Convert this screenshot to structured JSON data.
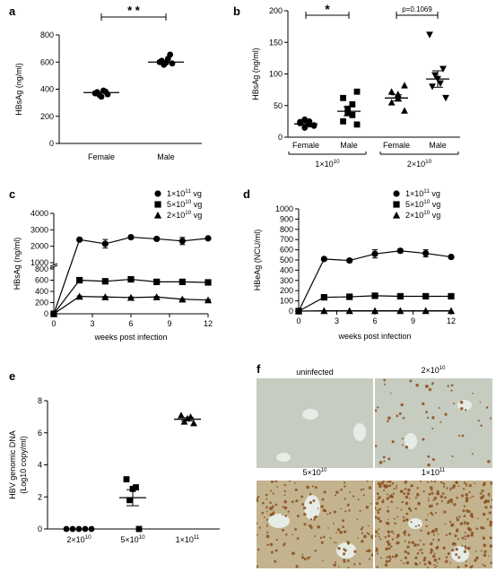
{
  "colors": {
    "ink": "#000000",
    "tissue_bg": "#c9cdc2",
    "stain": "#8a4f1f"
  },
  "chart_data": [
    {
      "panel": "a",
      "type": "scatter",
      "categories": [
        "Female",
        "Male"
      ],
      "ylabel": "HBsAg (ng/ml)",
      "ylim": [
        0,
        800
      ],
      "yticks": [
        "0",
        "200",
        "400",
        "600",
        "800"
      ],
      "points": [
        [
          362,
          378,
          390,
          345,
          358,
          382,
          370
        ],
        [
          590,
          610,
          625,
          595,
          580,
          655,
          600
        ]
      ],
      "means": [
        375,
        600
      ],
      "significance": [
        {
          "from": 0,
          "to": 1,
          "label": "* *"
        }
      ]
    },
    {
      "panel": "b",
      "type": "scatter",
      "categories": [
        "Female",
        "Male",
        "Female",
        "Male"
      ],
      "markers": [
        "circle",
        "square",
        "triangle",
        "triangle-down"
      ],
      "groups": [
        {
          "label_base": "1×10",
          "label_exp": "10"
        },
        {
          "label_base": "2×10",
          "label_exp": "10"
        }
      ],
      "ylabel": "HBsAg (ng/ml)",
      "ylim": [
        0,
        200
      ],
      "yticks": [
        "0",
        "50",
        "100",
        "150",
        "200"
      ],
      "points": [
        [
          18,
          22,
          25,
          28,
          15,
          20,
          24,
          19
        ],
        [
          20,
          25,
          35,
          38,
          45,
          52,
          62,
          72
        ],
        [
          42,
          55,
          62,
          68,
          72,
          82
        ],
        [
          62,
          80,
          85,
          92,
          98,
          108,
          162
        ]
      ],
      "means": [
        21,
        41,
        62,
        92
      ],
      "sem": [
        2,
        7,
        5,
        13
      ],
      "significance": [
        {
          "from": 0,
          "to": 1,
          "label": "*"
        },
        {
          "from": 2,
          "to": 3,
          "label": "p=0.1069"
        }
      ]
    },
    {
      "panel": "c",
      "type": "line",
      "xlabel": "weeks post infection",
      "ylabel": "HBsAg (ng/ml)",
      "x": [
        0,
        2,
        4,
        6,
        8,
        10,
        12
      ],
      "xticks": [
        "0",
        "3",
        "6",
        "9",
        "12"
      ],
      "yticks_lower": [
        "0",
        "200",
        "400",
        "600",
        "800"
      ],
      "yticks_upper": [
        "1000",
        "2000",
        "3000",
        "4000"
      ],
      "series": [
        {
          "marker": "circle",
          "label_base": "1×10",
          "label_exp": "11",
          "label_unit": " vg",
          "values": [
            0,
            2400,
            2150,
            2550,
            2450,
            2320,
            2480
          ],
          "sem": [
            0,
            60,
            260,
            70,
            60,
            220,
            80
          ]
        },
        {
          "marker": "square",
          "label_base": "5×10",
          "label_exp": "10",
          "label_unit": " vg",
          "values": [
            0,
            600,
            580,
            615,
            570,
            570,
            560
          ],
          "sem": [
            0,
            15,
            15,
            20,
            15,
            15,
            15
          ]
        },
        {
          "marker": "triangle",
          "label_base": "2×10",
          "label_exp": "10",
          "label_unit": " vg",
          "values": [
            0,
            310,
            300,
            290,
            300,
            260,
            245
          ],
          "sem": [
            0,
            10,
            10,
            10,
            10,
            10,
            10
          ]
        }
      ]
    },
    {
      "panel": "d",
      "type": "line",
      "xlabel": "weeks post infection",
      "ylabel": "HBeAg (NCU/ml)",
      "x": [
        0,
        2,
        4,
        6,
        8,
        10,
        12
      ],
      "xticks": [
        "0",
        "3",
        "6",
        "9",
        "12"
      ],
      "ylim": [
        0,
        1000
      ],
      "yticks": [
        "0",
        "100",
        "200",
        "300",
        "400",
        "500",
        "600",
        "700",
        "800",
        "900",
        "1000"
      ],
      "series": [
        {
          "marker": "circle",
          "label_base": "1×10",
          "label_exp": "11",
          "label_unit": " vg",
          "values": [
            0,
            510,
            495,
            560,
            590,
            565,
            530
          ],
          "sem": [
            0,
            15,
            15,
            40,
            20,
            35,
            15
          ]
        },
        {
          "marker": "square",
          "label_base": "5×10",
          "label_exp": "10",
          "label_unit": " vg",
          "values": [
            0,
            135,
            140,
            150,
            145,
            145,
            145
          ],
          "sem": [
            0,
            10,
            10,
            10,
            10,
            10,
            10
          ]
        },
        {
          "marker": "triangle",
          "label_base": "2×10",
          "label_exp": "10",
          "label_unit": " vg",
          "values": [
            0,
            3,
            3,
            3,
            3,
            3,
            3
          ],
          "sem": [
            0,
            0,
            0,
            0,
            0,
            0,
            0
          ]
        }
      ]
    },
    {
      "panel": "e",
      "type": "scatter",
      "categories_base": [
        "2×10",
        "5×10",
        "1×10"
      ],
      "categories_exp": [
        "10",
        "10",
        "11"
      ],
      "markers": [
        "circle",
        "square",
        "triangle"
      ],
      "ylabel_line1": "HBV genomic DNA",
      "ylabel_line2": "(Log10 copy/ml)",
      "ylim": [
        0,
        8
      ],
      "yticks": [
        "0",
        "2",
        "4",
        "6",
        "8"
      ],
      "points": [
        [
          0,
          0,
          0,
          0,
          0
        ],
        [
          0,
          1.8,
          2.5,
          2.6,
          3.1
        ],
        [
          6.6,
          6.7,
          6.9,
          7.0,
          7.1
        ]
      ],
      "means": [
        0,
        1.95,
        6.85
      ],
      "sem": [
        0,
        0.5,
        0.1
      ]
    }
  ],
  "panel_f": {
    "letter": "f",
    "images": [
      {
        "label": "uninfected",
        "density": 0.0
      },
      {
        "label_base": "2×10",
        "label_exp": "10",
        "density": 0.15
      },
      {
        "label_base": "5×10",
        "label_exp": "10",
        "density": 0.45
      },
      {
        "label_base": "1×10",
        "label_exp": "11",
        "density": 0.9
      }
    ]
  }
}
